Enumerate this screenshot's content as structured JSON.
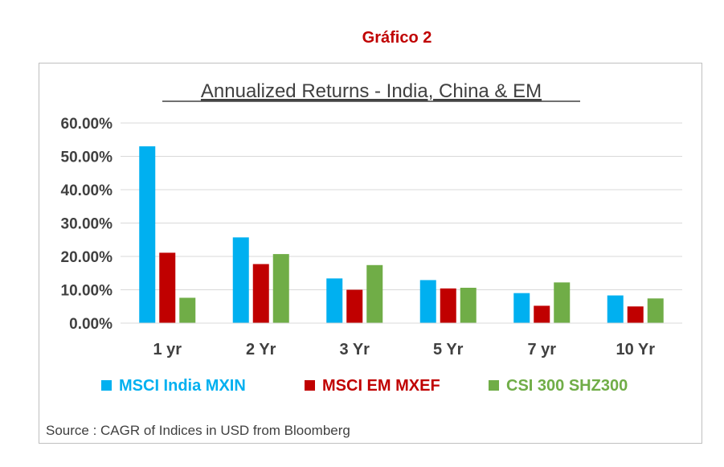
{
  "page": {
    "caption": "Gráfico 2"
  },
  "chart_data": {
    "type": "bar",
    "title": "Annualized Returns - India, China & EM",
    "categories": [
      "1 yr",
      "2 Yr",
      "3 Yr",
      "5 Yr",
      "7 yr",
      "10 Yr"
    ],
    "series": [
      {
        "name": "MSCI India MXIN",
        "color": "#00b0f0",
        "values": [
          53.0,
          25.7,
          13.4,
          12.9,
          9.0,
          8.3
        ]
      },
      {
        "name": "MSCI EM MXEF",
        "color": "#c00000",
        "values": [
          21.1,
          17.7,
          10.0,
          10.4,
          5.2,
          5.0
        ]
      },
      {
        "name": "CSI 300 SHZ300",
        "color": "#70ad47",
        "values": [
          7.6,
          20.7,
          17.4,
          10.6,
          12.2,
          7.4
        ]
      }
    ],
    "yticks": [
      "0.00%",
      "10.00%",
      "20.00%",
      "30.00%",
      "40.00%",
      "50.00%",
      "60.00%"
    ],
    "ylim": [
      0,
      60
    ],
    "grid": true,
    "legend": "bottom",
    "source": "Source : CAGR of Indices in USD from Bloomberg"
  }
}
